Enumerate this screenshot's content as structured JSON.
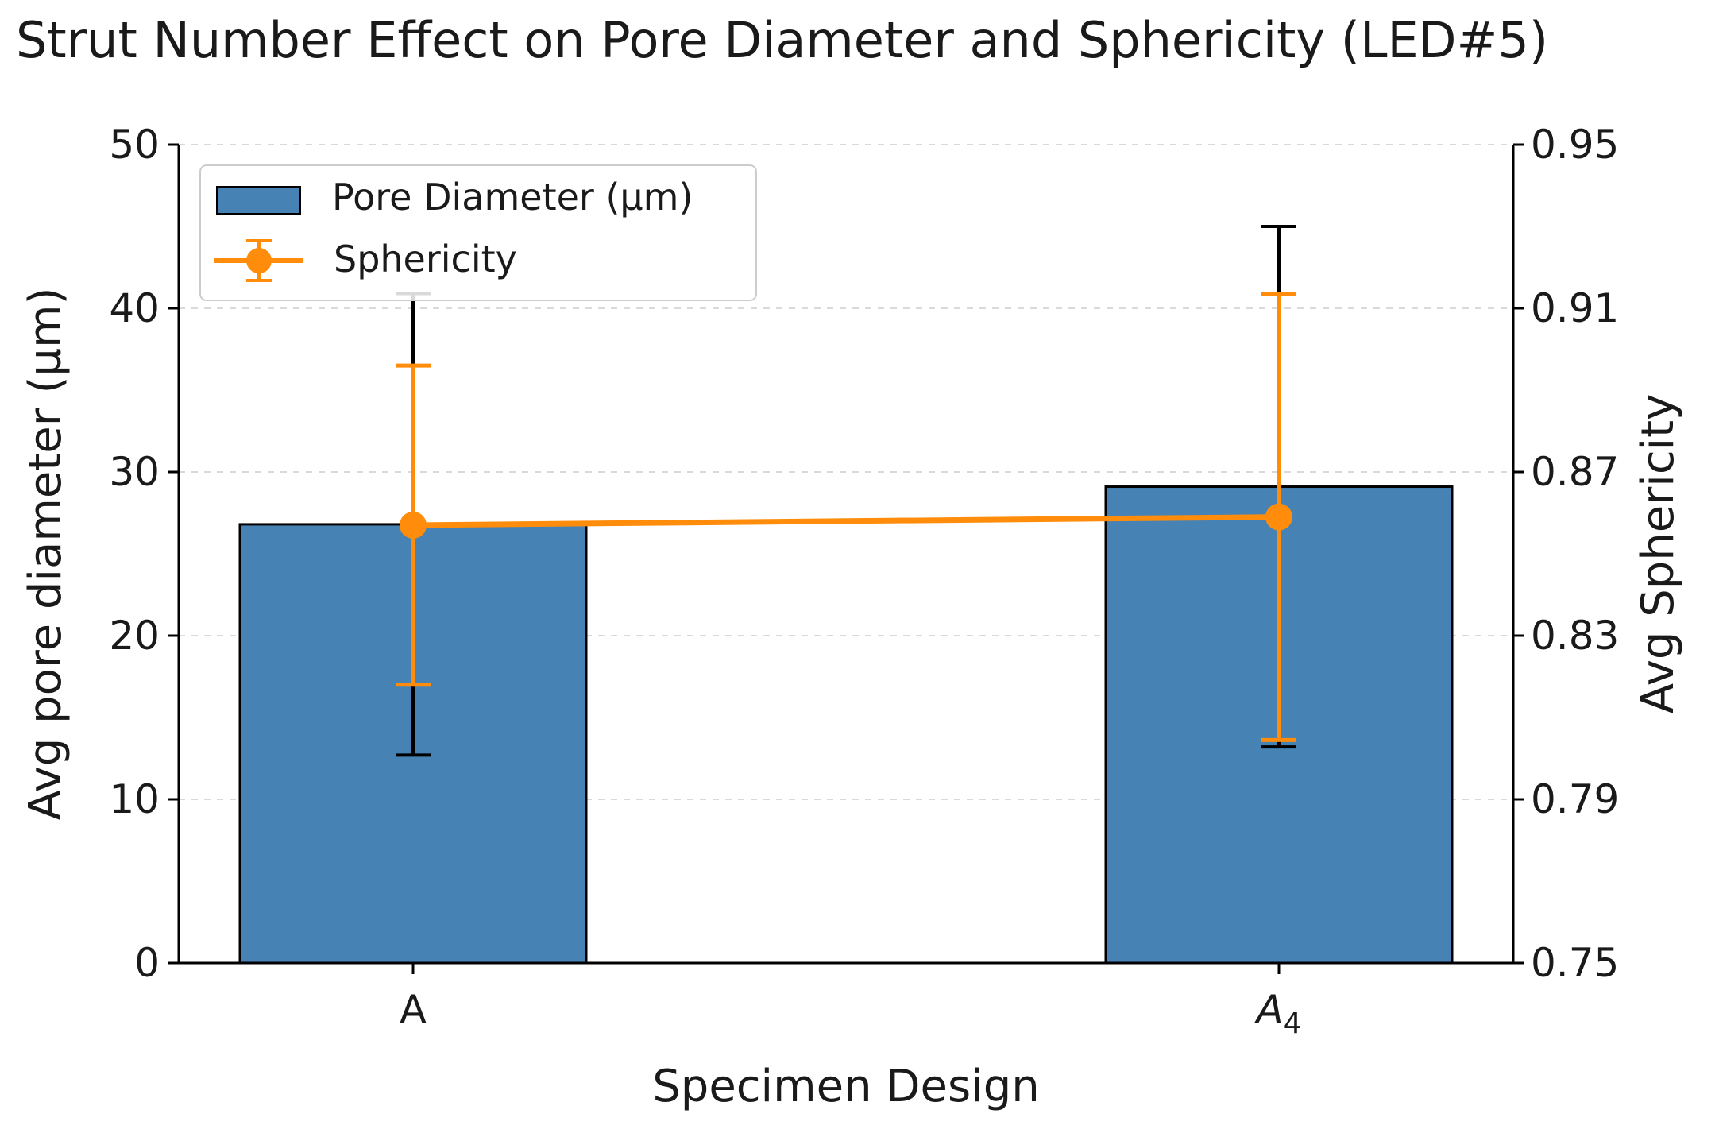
{
  "chart_data": {
    "type": "bar",
    "title": "Strut Number Effect on Pore Diameter and Sphericity (LED#5)",
    "xlabel": "Specimen Design",
    "ylabel": "Avg pore diameter (µm)",
    "y2label": "Avg Sphericity",
    "categories": [
      "A",
      "A4"
    ],
    "category_display": [
      {
        "base": "A",
        "sub": ""
      },
      {
        "base": "A",
        "sub": "4"
      }
    ],
    "ylim": [
      0,
      50
    ],
    "yticks": [
      0,
      10,
      20,
      30,
      40,
      50
    ],
    "y2lim": [
      0.75,
      0.95
    ],
    "y2ticks": [
      0.75,
      0.79,
      0.83,
      0.87,
      0.91,
      0.95
    ],
    "grid": "horizontal dashed",
    "legend_position": "top-left",
    "series": [
      {
        "name": "Pore Diameter (µm)",
        "kind": "bar",
        "axis": "left",
        "values": [
          26.8,
          29.1
        ],
        "errors": [
          14.1,
          15.9
        ],
        "color": "#4682b4",
        "edge_color": "#000000"
      },
      {
        "name": "Sphericity",
        "kind": "line",
        "axis": "right",
        "values": [
          0.857,
          0.859
        ],
        "errors": [
          0.039,
          0.0545
        ],
        "color": "#ff8c0a"
      }
    ]
  }
}
